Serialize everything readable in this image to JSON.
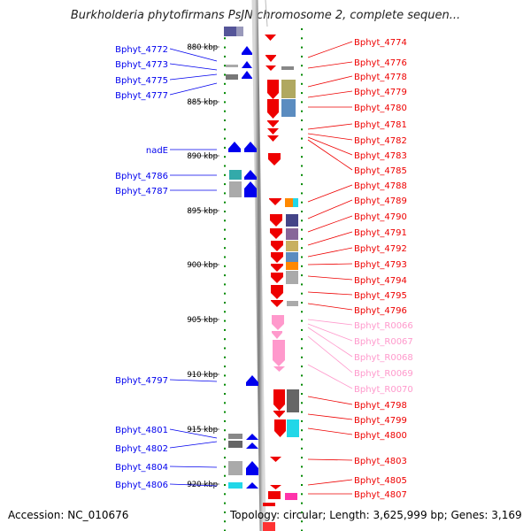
{
  "title": "Burkholderia phytofirmans PsJN chromosome 2, complete sequen...",
  "footer": {
    "accession": "Accession: NC_010676",
    "topology": "Topology: circular; Length: 3,625,999 bp; Genes: 3,169"
  },
  "colors": {
    "forward_gene": "#0000ee",
    "reverse_gene": "#ee0000",
    "rna_gene": "#ff99cc",
    "backbone": "#888888",
    "tick": "#008800"
  },
  "scale_labels": [
    "880 kbp",
    "885 kbp",
    "890 kbp",
    "895 kbp",
    "900 kbp",
    "905 kbp",
    "910 kbp",
    "915 kbp",
    "920 kbp"
  ],
  "left_labels": [
    "Bphyt_4772",
    "Bphyt_4773",
    "Bphyt_4775",
    "Bphyt_4777",
    "nadE",
    "Bphyt_4786",
    "Bphyt_4787",
    "Bphyt_4797",
    "Bphyt_4801",
    "Bphyt_4802",
    "Bphyt_4804",
    "Bphyt_4806"
  ],
  "right_labels": [
    "Bphyt_4774",
    "Bphyt_4776",
    "Bphyt_4778",
    "Bphyt_4779",
    "Bphyt_4780",
    "Bphyt_4781",
    "Bphyt_4782",
    "Bphyt_4783",
    "Bphyt_4785",
    "Bphyt_4788",
    "Bphyt_4789",
    "Bphyt_4790",
    "Bphyt_4791",
    "Bphyt_4792",
    "Bphyt_4793",
    "Bphyt_4794",
    "Bphyt_4795",
    "Bphyt_4796",
    "Bphyt_R0066",
    "Bphyt_R0067",
    "Bphyt_R0068",
    "Bphyt_R0069",
    "Bphyt_R0070",
    "Bphyt_4798",
    "Bphyt_4799",
    "Bphyt_4800",
    "Bphyt_4803",
    "Bphyt_4805",
    "Bphyt_4807"
  ]
}
